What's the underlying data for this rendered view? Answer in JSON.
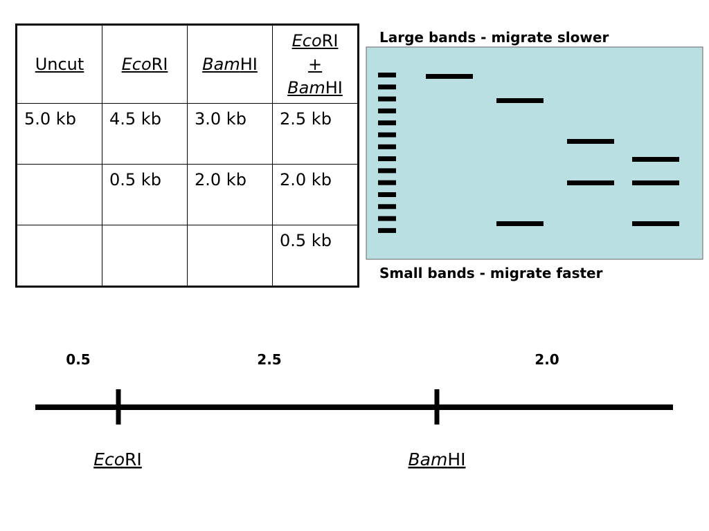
{
  "table": {
    "headers": [
      [
        [
          {
            "text": "Uncut",
            "italic": false
          }
        ]
      ],
      [
        [
          {
            "text": "Eco",
            "italic": true
          },
          {
            "text": "RI",
            "italic": false
          }
        ]
      ],
      [
        [
          {
            "text": "Bam",
            "italic": true
          },
          {
            "text": "HI",
            "italic": false
          }
        ]
      ],
      [
        [
          {
            "text": "Eco",
            "italic": true
          },
          {
            "text": "RI",
            "italic": false
          }
        ],
        [
          {
            "text": "+",
            "italic": false
          }
        ],
        [
          {
            "text": "Bam",
            "italic": true
          },
          {
            "text": "HI",
            "italic": false
          }
        ]
      ]
    ],
    "rows": [
      [
        "5.0 kb",
        "4.5 kb",
        "3.0 kb",
        "2.5 kb"
      ],
      [
        null,
        "0.5 kb",
        "2.0 kb",
        "2.0 kb"
      ],
      [
        null,
        null,
        null,
        "0.5 kb"
      ]
    ]
  },
  "gel": {
    "top_label": "Large bands - migrate slower",
    "bottom_label": "Small bands - migrate faster"
  },
  "map": {
    "segments": [
      "0.5",
      "2.5",
      "2.0"
    ],
    "sites": [
      [
        {
          "text": "Eco",
          "italic": true
        },
        {
          "text": "RI",
          "italic": false
        }
      ],
      [
        {
          "text": "Bam",
          "italic": true
        },
        {
          "text": "HI",
          "italic": false
        }
      ]
    ]
  }
}
